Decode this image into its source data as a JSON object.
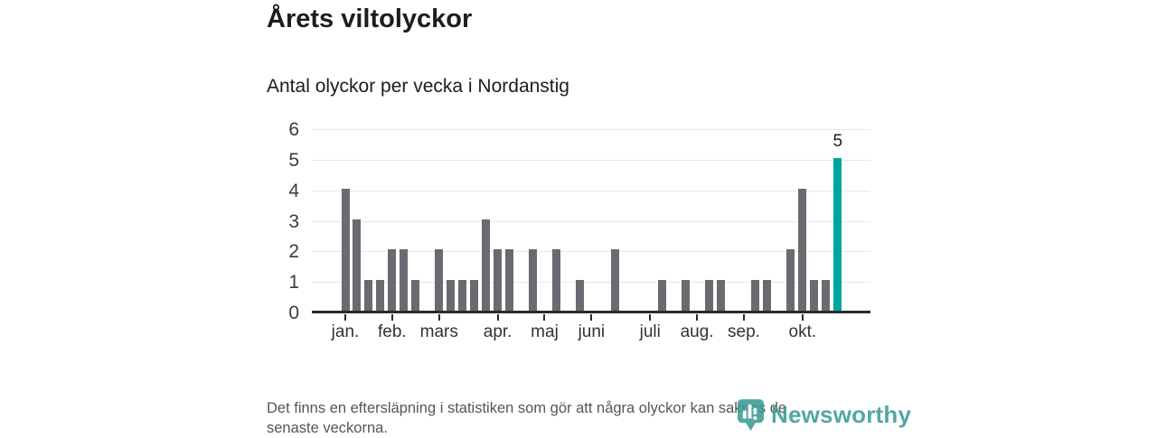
{
  "title": "Årets viltolyckor",
  "subtitle": "Antal olyckor per vecka i Nordanstig",
  "footnote_lines": [
    "Det finns en eftersläpning i statistiken som gör att några olyckor kan saknas de",
    "senaste veckorna."
  ],
  "logo": {
    "icon": "newsworthy-pin-icon",
    "text": "Newsworthy"
  },
  "colors": {
    "ink": "#1d1d1b",
    "bar": "#6a6a70",
    "accent": "#00a59c",
    "grid": "#e7e7e7",
    "axis": "#2b2b2b",
    "brand": "#3d9c95"
  },
  "chart_data": {
    "type": "bar",
    "title": "Årets viltolyckor",
    "subtitle": "Antal olyckor per vecka i Nordanstig",
    "x_unit": "vecka (week number)",
    "weeks_start": 1,
    "n_weeks": 43,
    "values": [
      4,
      3,
      1,
      1,
      2,
      2,
      1,
      0,
      2,
      1,
      1,
      1,
      3,
      2,
      2,
      0,
      2,
      0,
      2,
      0,
      1,
      0,
      0,
      2,
      0,
      0,
      0,
      1,
      0,
      1,
      0,
      1,
      1,
      0,
      0,
      1,
      1,
      0,
      2,
      4,
      1,
      1,
      5
    ],
    "highlight_index": 42,
    "highlight_label": "5",
    "month_ticks": [
      {
        "week": 1,
        "label": "jan."
      },
      {
        "week": 5,
        "label": "feb."
      },
      {
        "week": 9,
        "label": "mars"
      },
      {
        "week": 14,
        "label": "apr."
      },
      {
        "week": 18,
        "label": "maj"
      },
      {
        "week": 22,
        "label": "juni"
      },
      {
        "week": 27,
        "label": "juli"
      },
      {
        "week": 31,
        "label": "aug."
      },
      {
        "week": 35,
        "label": "sep."
      },
      {
        "week": 40,
        "label": "okt."
      }
    ],
    "ylim": [
      0,
      6
    ],
    "yticks": [
      0,
      1,
      2,
      3,
      4,
      5,
      6
    ],
    "grid": "horizontal",
    "legend": "none"
  }
}
